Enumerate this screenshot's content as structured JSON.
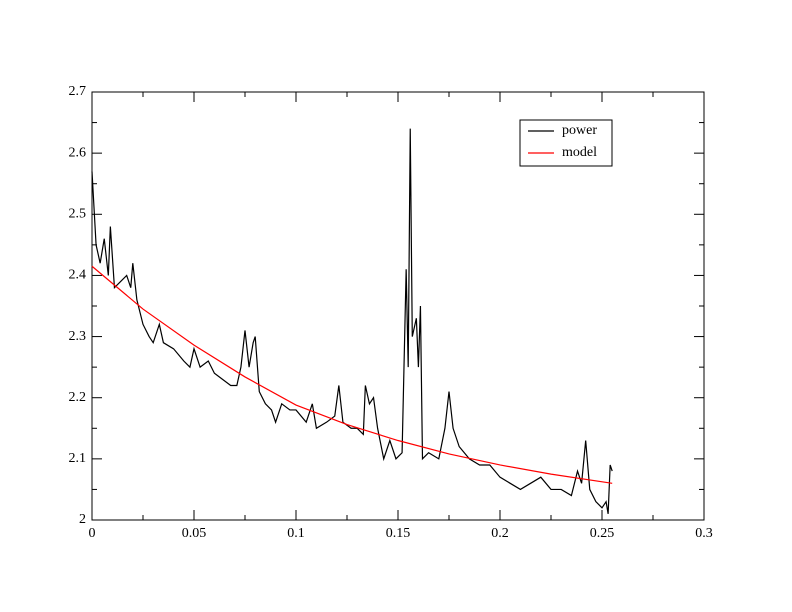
{
  "chart_data": {
    "type": "line",
    "xlim": [
      0,
      0.3
    ],
    "xticks": [
      0,
      0.05,
      0.1,
      0.15,
      0.2,
      0.25,
      0.3
    ],
    "ylim": [
      2,
      2.7
    ],
    "yticks": [
      2,
      2.1,
      2.2,
      2.3,
      2.4,
      2.5,
      2.6,
      2.7
    ],
    "legend": "upper right",
    "series": [
      {
        "name": "power",
        "color": "#000000",
        "x": [
          0.0,
          0.002,
          0.004,
          0.006,
          0.008,
          0.009,
          0.011,
          0.014,
          0.017,
          0.019,
          0.02,
          0.022,
          0.025,
          0.028,
          0.03,
          0.033,
          0.035,
          0.04,
          0.045,
          0.048,
          0.05,
          0.053,
          0.057,
          0.06,
          0.064,
          0.068,
          0.071,
          0.073,
          0.075,
          0.077,
          0.079,
          0.08,
          0.082,
          0.085,
          0.088,
          0.09,
          0.093,
          0.097,
          0.1,
          0.105,
          0.108,
          0.11,
          0.115,
          0.119,
          0.121,
          0.123,
          0.127,
          0.13,
          0.133,
          0.134,
          0.136,
          0.138,
          0.14,
          0.143,
          0.146,
          0.149,
          0.152,
          0.154,
          0.155,
          0.156,
          0.157,
          0.159,
          0.16,
          0.161,
          0.162,
          0.165,
          0.17,
          0.173,
          0.175,
          0.177,
          0.18,
          0.185,
          0.19,
          0.195,
          0.2,
          0.205,
          0.21,
          0.215,
          0.22,
          0.225,
          0.23,
          0.235,
          0.238,
          0.24,
          0.242,
          0.244,
          0.247,
          0.25,
          0.252,
          0.253,
          0.254,
          0.255
        ],
        "values": [
          2.57,
          2.45,
          2.42,
          2.46,
          2.4,
          2.48,
          2.38,
          2.39,
          2.4,
          2.38,
          2.42,
          2.36,
          2.32,
          2.3,
          2.29,
          2.32,
          2.29,
          2.28,
          2.26,
          2.25,
          2.28,
          2.25,
          2.26,
          2.24,
          2.23,
          2.22,
          2.22,
          2.25,
          2.31,
          2.25,
          2.29,
          2.3,
          2.21,
          2.19,
          2.18,
          2.16,
          2.19,
          2.18,
          2.18,
          2.16,
          2.19,
          2.15,
          2.16,
          2.17,
          2.22,
          2.16,
          2.15,
          2.15,
          2.14,
          2.22,
          2.19,
          2.2,
          2.15,
          2.1,
          2.13,
          2.1,
          2.11,
          2.41,
          2.25,
          2.64,
          2.3,
          2.33,
          2.25,
          2.35,
          2.1,
          2.11,
          2.1,
          2.15,
          2.21,
          2.15,
          2.12,
          2.1,
          2.09,
          2.09,
          2.07,
          2.06,
          2.05,
          2.06,
          2.07,
          2.05,
          2.05,
          2.04,
          2.08,
          2.06,
          2.13,
          2.05,
          2.03,
          2.02,
          2.03,
          2.01,
          2.09,
          2.08
        ]
      },
      {
        "name": "model",
        "color": "#ff0000",
        "x": [
          0,
          0.025,
          0.05,
          0.075,
          0.1,
          0.125,
          0.15,
          0.175,
          0.2,
          0.225,
          0.255
        ],
        "values": [
          2.415,
          2.345,
          2.286,
          2.234,
          2.188,
          2.156,
          2.13,
          2.108,
          2.09,
          2.075,
          2.06
        ]
      }
    ]
  }
}
